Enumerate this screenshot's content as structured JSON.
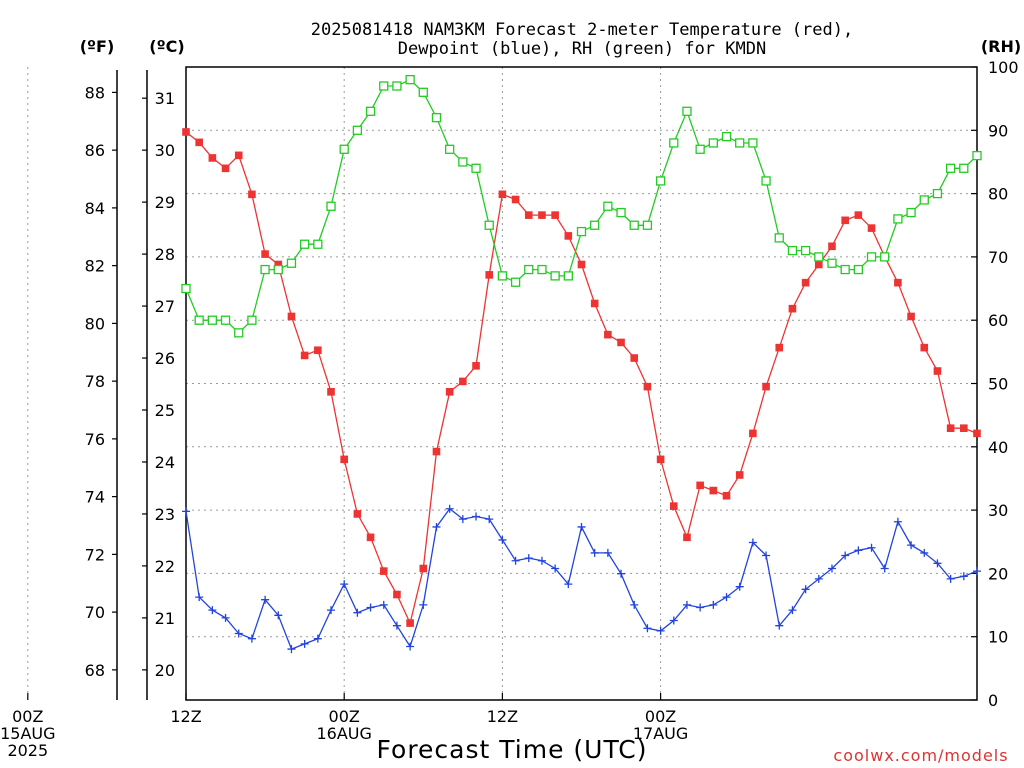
{
  "header": {
    "title_line1": "2025081418 NAM3KM Forecast 2-meter Temperature (red),",
    "title_line2": "Dewpoint (blue), RH (green) for KMDN"
  },
  "units": {
    "fahrenheit": "(ºF)",
    "celsius": "(ºC)",
    "rh": "(RH)"
  },
  "footer": {
    "xlabel": "Forecast Time (UTC)",
    "credit": "coolwx.com/models"
  },
  "colors": {
    "temp": "#ee3333",
    "dew": "#2244dd",
    "rh": "#22cc22",
    "credit": "#dd3333"
  },
  "chart_data": {
    "type": "line",
    "x_start_hour_utc": 18,
    "x_step_hours": 1,
    "y_left_celsius": {
      "lim": [
        19.42,
        31.6
      ],
      "ticks": [
        20,
        21,
        22,
        23,
        24,
        25,
        26,
        27,
        28,
        29,
        30,
        31
      ]
    },
    "y_left_fahrenheit": {
      "ticks": [
        68,
        70,
        72,
        74,
        76,
        78,
        80,
        82,
        84,
        86,
        88
      ]
    },
    "y_right_rh": {
      "lim": [
        0,
        100
      ],
      "ticks": [
        0,
        10,
        20,
        30,
        40,
        50,
        60,
        70,
        80,
        90,
        100
      ]
    },
    "x_ticks": [
      {
        "hour": 6,
        "line1": "00Z",
        "line2": "15AUG",
        "line3": "2025"
      },
      {
        "hour": 18,
        "line1": "12Z",
        "line2": "",
        "line3": ""
      },
      {
        "hour": 30,
        "line1": "00Z",
        "line2": "16AUG",
        "line3": ""
      },
      {
        "hour": 42,
        "line1": "12Z",
        "line2": "",
        "line3": ""
      },
      {
        "hour": 54,
        "line1": "00Z",
        "line2": "17AUG",
        "line3": ""
      }
    ],
    "grid": true,
    "series": [
      {
        "key": "temp",
        "unit": "C",
        "marker": "filled-square",
        "values": [
          30.35,
          30.15,
          29.85,
          29.65,
          29.9,
          29.15,
          28.0,
          27.8,
          26.8,
          26.05,
          26.15,
          25.35,
          24.05,
          23.0,
          22.55,
          21.9,
          21.45,
          20.9,
          21.95,
          24.2,
          25.35,
          25.55,
          25.85,
          27.6,
          29.15,
          29.05,
          28.75,
          28.75,
          28.75,
          28.35,
          27.8,
          27.05,
          26.45,
          26.3,
          26.0,
          25.45,
          24.05,
          23.15,
          22.55,
          23.55,
          23.45,
          23.35,
          23.75,
          24.55,
          25.45,
          26.2,
          26.95,
          27.45,
          27.8,
          28.15,
          28.65,
          28.75,
          28.5,
          27.95,
          27.45,
          26.8,
          26.2,
          25.75,
          24.65,
          24.65,
          24.55
        ]
      },
      {
        "key": "dew",
        "unit": "C",
        "marker": "plus",
        "values": [
          23.05,
          21.4,
          21.15,
          21.0,
          20.7,
          20.6,
          21.35,
          21.05,
          20.4,
          20.5,
          20.6,
          21.15,
          21.65,
          21.1,
          21.2,
          21.25,
          20.85,
          20.45,
          21.25,
          22.75,
          23.1,
          22.9,
          22.95,
          22.9,
          22.5,
          22.1,
          22.15,
          22.1,
          21.95,
          21.65,
          22.75,
          22.25,
          22.25,
          21.85,
          21.25,
          20.8,
          20.75,
          20.95,
          21.25,
          21.2,
          21.25,
          21.4,
          21.6,
          22.45,
          22.2,
          20.85,
          21.15,
          21.55,
          21.75,
          21.95,
          22.2,
          22.3,
          22.35,
          21.95,
          22.85,
          22.4,
          22.25,
          22.05,
          21.75,
          21.8,
          21.9
        ]
      },
      {
        "key": "rh",
        "unit": "%",
        "marker": "open-square",
        "values": [
          65,
          60,
          60,
          60,
          58,
          60,
          68,
          68,
          69,
          72,
          72,
          78,
          87,
          90,
          93,
          97,
          97,
          98,
          96,
          92,
          87,
          85,
          84,
          75,
          67,
          66,
          68,
          68,
          67,
          67,
          74,
          75,
          78,
          77,
          75,
          75,
          82,
          88,
          93,
          87,
          88,
          89,
          88,
          88,
          82,
          73,
          71,
          71,
          70,
          69,
          68,
          68,
          70,
          70,
          76,
          77,
          79,
          80,
          84,
          84,
          86
        ]
      }
    ]
  }
}
